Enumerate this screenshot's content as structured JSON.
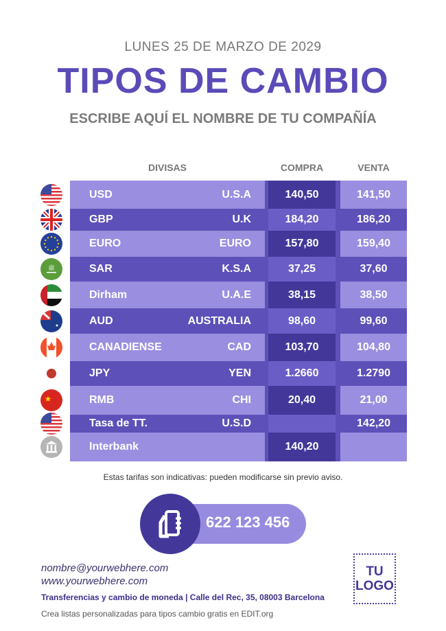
{
  "date": "LUNES 25 DE MARZO DE 2029",
  "title": "TIPOS DE CAMBIO",
  "company": "ESCRIBE AQUÍ EL NOMBRE DE TU COMPAÑÍA",
  "headers": {
    "divisas": "DIVISAS",
    "compra": "COMPRA",
    "venta": "VENTA"
  },
  "colors": {
    "accent": "#5a4bb8",
    "light": "#9a8ee0",
    "dark": "#43389a"
  },
  "rows": [
    {
      "code": "USD",
      "country": "U.S.A",
      "compra": "140,50",
      "venta": "141,50",
      "flag": "us-flag-icon"
    },
    {
      "code": "GBP",
      "country": "U.K",
      "compra": "184,20",
      "venta": "186,20",
      "flag": "uk-flag-icon"
    },
    {
      "code": "EURO",
      "country": "EURO",
      "compra": "157,80",
      "venta": "159,40",
      "flag": "eu-flag-icon"
    },
    {
      "code": "SAR",
      "country": "K.S.A",
      "compra": "37,25",
      "venta": "37,60",
      "flag": "saudi-flag-icon"
    },
    {
      "code": "Dirham",
      "country": "U.A.E",
      "compra": "38,15",
      "venta": "38,50",
      "flag": "uae-flag-icon"
    },
    {
      "code": "AUD",
      "country": "AUSTRALIA",
      "compra": "98,60",
      "venta": "99,60",
      "flag": "australia-flag-icon"
    },
    {
      "code": "CANADIENSE",
      "country": "CAD",
      "compra": "103,70",
      "venta": "104,80",
      "flag": "canada-flag-icon"
    },
    {
      "code": "JPY",
      "country": "YEN",
      "compra": "1.2660",
      "venta": "1.2790",
      "flag": "japan-flag-icon"
    },
    {
      "code": "RMB",
      "country": "CHI",
      "compra": "20,40",
      "venta": "21,00",
      "flag": "china-flag-icon"
    },
    {
      "code": "Tasa de TT.",
      "country": "U.S.D",
      "compra": "",
      "venta": "142,20",
      "flag": "us-flag-icon"
    },
    {
      "code": "Interbank",
      "country": "",
      "compra": "140,20",
      "venta": "",
      "flag": "bank-icon"
    }
  ],
  "note": "Estas tarifas son indicativas: pueden modificarse sin previo aviso.",
  "phone": "622 123 456",
  "email": "nombre@yourwebhere.com",
  "web": "www.yourwebhere.com",
  "address": "Transferencias y cambio de moneda | Calle del Rec, 35, 08003 Barcelona",
  "credit": "Crea listas personalizadas para tipos cambio gratis en EDIT.org",
  "logo": {
    "line1": "TU",
    "line2": "LOGO"
  }
}
